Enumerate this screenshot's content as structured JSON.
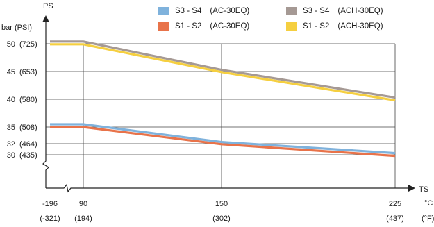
{
  "chart_data": {
    "type": "line",
    "xlabel": "TS",
    "ylabel": "PS",
    "y_unit": "bar (PSI)",
    "x_unit_primary": "°C",
    "x_unit_secondary": "(°F)",
    "x_ticks": [
      {
        "value": -196,
        "label": "-196",
        "sublabel": "(-321)"
      },
      {
        "value": 90,
        "label": "90",
        "sublabel": "(194)"
      },
      {
        "value": 150,
        "label": "150",
        "sublabel": "(302)"
      },
      {
        "value": 225,
        "label": "225",
        "sublabel": "(437)"
      }
    ],
    "y_ticks": [
      {
        "value": 50,
        "label": "50",
        "sublabel": "(725)"
      },
      {
        "value": 45,
        "label": "45",
        "sublabel": "(653)"
      },
      {
        "value": 40,
        "label": "40",
        "sublabel": "(580)"
      },
      {
        "value": 35,
        "label": "35",
        "sublabel": "(508)"
      },
      {
        "value": 32,
        "label": "32",
        "sublabel": "(464)"
      },
      {
        "value": 30,
        "label": "30",
        "sublabel": "(435)"
      }
    ],
    "axis_break": true,
    "grid": true,
    "legend_position": "top-right",
    "series": [
      {
        "name": "S3 - S4",
        "suffix": "(AC-30EQ)",
        "color": "#7fb2dc",
        "points": [
          [
            -196,
            35.5
          ],
          [
            90,
            35.5
          ],
          [
            150,
            32.3
          ],
          [
            225,
            30.3
          ]
        ]
      },
      {
        "name": "S1 - S2",
        "suffix": "(AC-30EQ)",
        "color": "#e8734a",
        "points": [
          [
            -196,
            35.0
          ],
          [
            90,
            35.0
          ],
          [
            150,
            31.9
          ],
          [
            225,
            29.8
          ]
        ]
      },
      {
        "name": "S3 - S4",
        "suffix": "(ACH-30EQ)",
        "color": "#a59994",
        "points": [
          [
            -196,
            50.4
          ],
          [
            90,
            50.4
          ],
          [
            150,
            45.3
          ],
          [
            225,
            40.3
          ]
        ]
      },
      {
        "name": "S1 - S2",
        "suffix": "(ACH-30EQ)",
        "color": "#f5cf40",
        "points": [
          [
            -196,
            49.9
          ],
          [
            90,
            49.9
          ],
          [
            150,
            44.9
          ],
          [
            225,
            39.8
          ]
        ]
      }
    ]
  }
}
